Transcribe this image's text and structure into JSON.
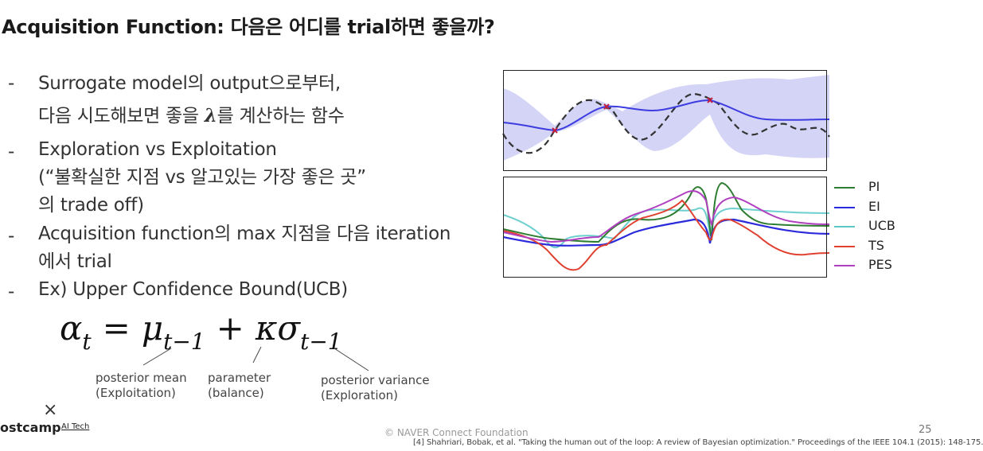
{
  "slide": {
    "title": "Acquisition Function: 다음은 어디를 trial하면 좋을까?",
    "bullet_marker": "-",
    "bullets": [
      {
        "line1": "Surrogate model의 output으로부터,",
        "line2_pre": "다음 시도해보면 좋을 ",
        "line2_symbol": "λ",
        "line2_post": "를 계산하는 함수"
      },
      {
        "line1": "Exploration vs Exploitation",
        "line2": "(“불확실한 지점 vs 알고있는 가장 좋은 곳”",
        "line3": "의 trade off)"
      },
      {
        "line1": "Acquisition function의 max 지점을 다음 iteration",
        "line2": "에서 trial"
      },
      {
        "line1": "Ex) Upper Confidence Bound(UCB)"
      }
    ],
    "formula": {
      "lhs": "α",
      "lhs_sub": "t",
      "eq": "=",
      "mu": "μ",
      "mu_sub": "t−1",
      "plus": "+",
      "kappa": "κ",
      "sigma": "σ",
      "sigma_sub": "t−1"
    },
    "annotations": {
      "mean": {
        "line1": "posterior mean",
        "line2": "(Exploitation)"
      },
      "param": {
        "line1": "parameter",
        "line2": "(balance)"
      },
      "variance": {
        "line1": "posterior variance",
        "line2": "(Exploration)"
      }
    },
    "legend": [
      {
        "label": "PI",
        "color": "#2e7d32"
      },
      {
        "label": "EI",
        "color": "#2b2bdc"
      },
      {
        "label": "UCB",
        "color": "#5cc8c8"
      },
      {
        "label": "TS",
        "color": "#e04030"
      },
      {
        "label": "PES",
        "color": "#b040c0"
      }
    ],
    "footer": {
      "logo_x": "×",
      "logo": "ostcamp",
      "logo_tech": "AI Tech",
      "copyright": "©  NAVER Connect Foundation",
      "page": "25",
      "reference": "[4] Shahriari, Bobak, et al. \"Taking the human out of the loop: A review of Bayesian optimization.\" Proceedings of the IEEE 104.1 (2015): 148-175."
    }
  }
}
